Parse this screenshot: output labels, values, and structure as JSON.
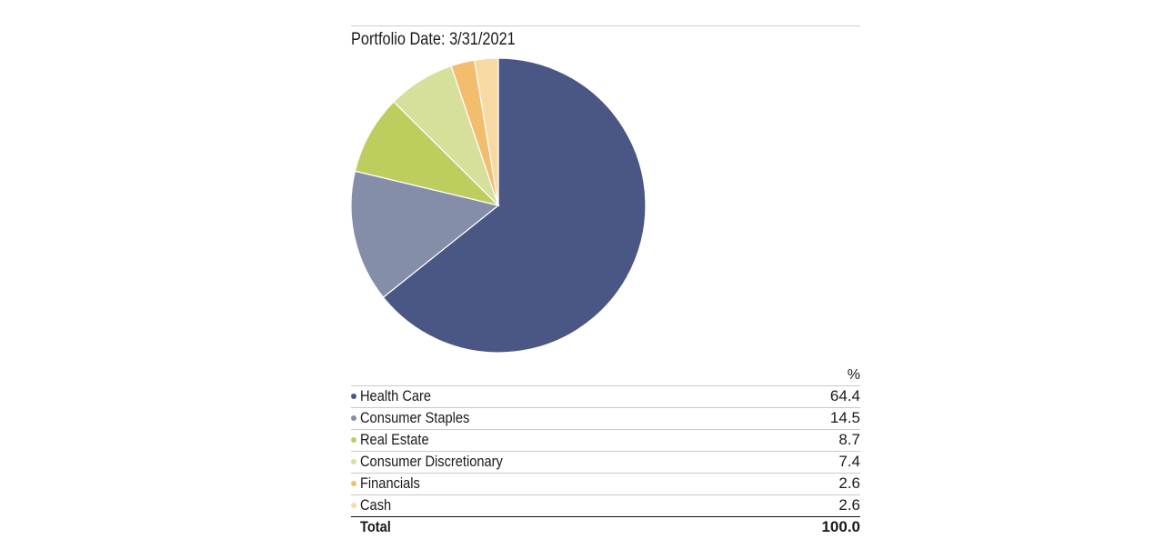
{
  "portfolio_date_label": "Portfolio Date: 3/31/2021",
  "table": {
    "unit_header": "%",
    "rows": [
      {
        "label": "Health Care",
        "value": "64.4",
        "color": "#4a5784"
      },
      {
        "label": "Consumer Staples",
        "value": "14.5",
        "color": "#858ea9"
      },
      {
        "label": "Real Estate",
        "value": "8.7",
        "color": "#bfcd5f"
      },
      {
        "label": "Consumer Discretionary",
        "value": "7.4",
        "color": "#d7e09b"
      },
      {
        "label": "Financials",
        "value": "2.6",
        "color": "#f3bd6e"
      },
      {
        "label": "Cash",
        "value": "2.6",
        "color": "#f7d9a3"
      }
    ],
    "total_label": "Total",
    "total_value": "100.0"
  },
  "chart_data": {
    "type": "pie",
    "categories": [
      "Health Care",
      "Consumer Staples",
      "Real Estate",
      "Consumer Discretionary",
      "Financials",
      "Cash"
    ],
    "values": [
      64.4,
      14.5,
      8.7,
      7.4,
      2.6,
      2.6
    ],
    "colors": [
      "#4a5784",
      "#858ea9",
      "#bfcd5f",
      "#d7e09b",
      "#f3bd6e",
      "#f7d9a3"
    ],
    "start": "12 o'clock",
    "direction": "clockwise"
  }
}
